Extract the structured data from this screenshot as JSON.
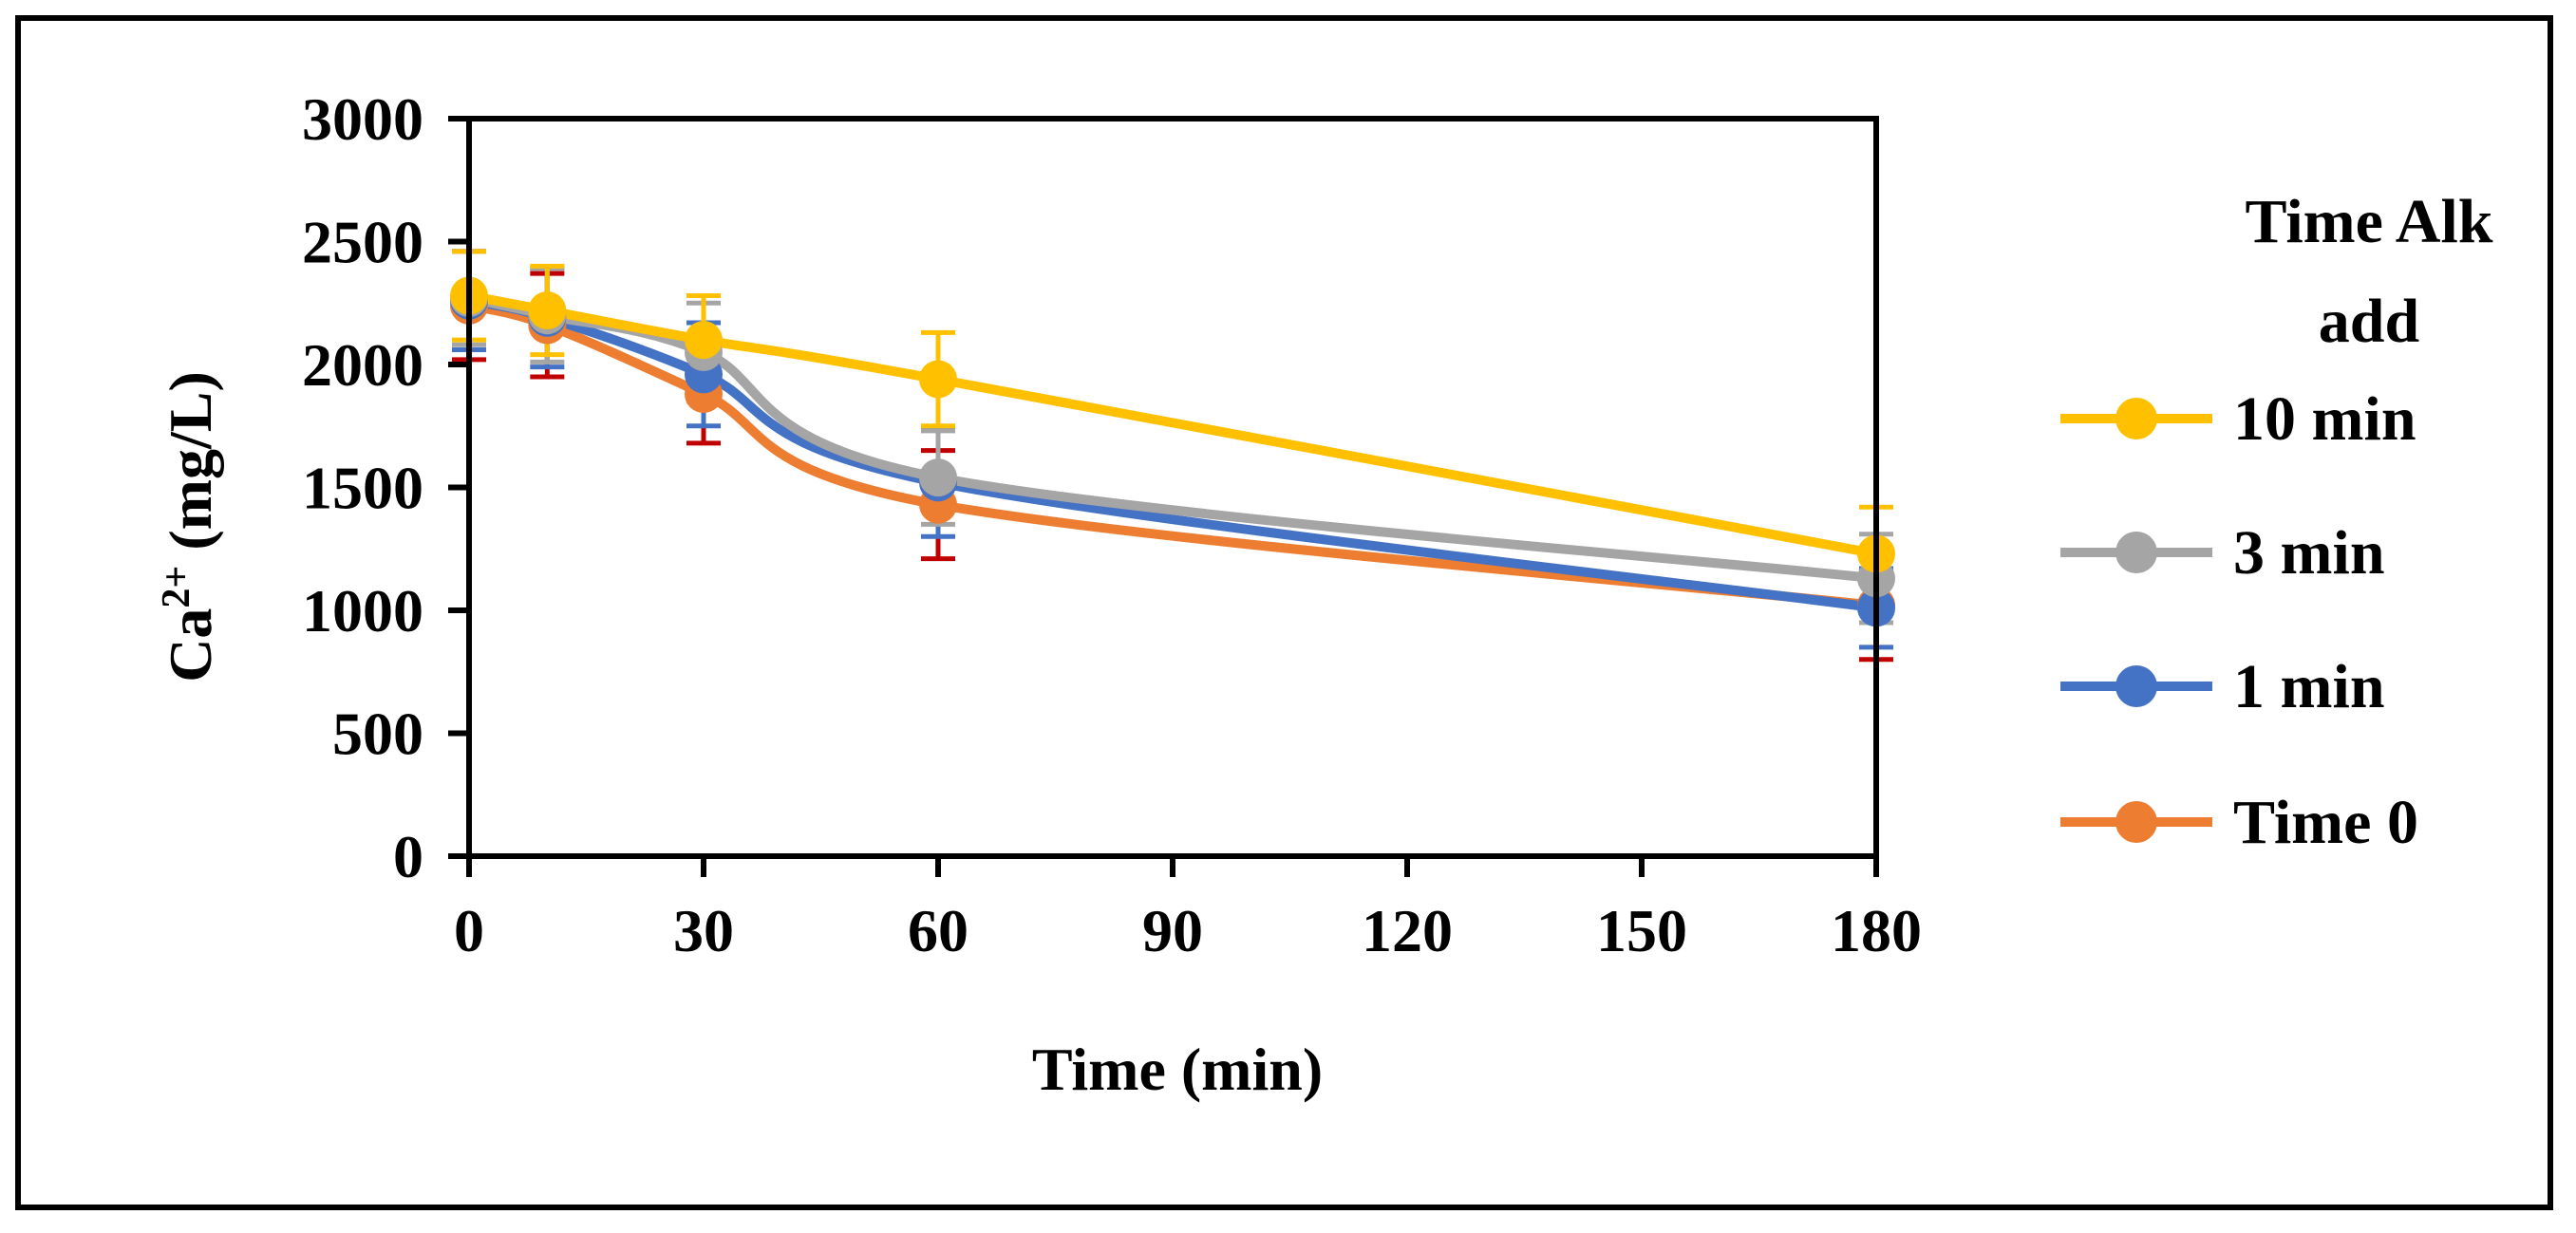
{
  "chart_data": {
    "type": "line",
    "title": "",
    "xlabel": "Time (min)",
    "ylabel": "Ca",
    "ylabel_superscript": "2+",
    "ylabel_unit": " (mg/L)",
    "xlim": [
      0,
      180
    ],
    "ylim": [
      0,
      3000
    ],
    "xticks": [
      0,
      30,
      60,
      90,
      120,
      150,
      180
    ],
    "yticks": [
      0,
      500,
      1000,
      1500,
      2000,
      2500,
      3000
    ],
    "grid": false,
    "smooth": true,
    "legend_position": "right",
    "legend_title": [
      "Time Alk",
      "add"
    ],
    "series": [
      {
        "name": "Time 0",
        "color": "#ED7D31",
        "error_bar_color": "#C00000",
        "x": [
          0,
          10,
          30,
          60,
          180
        ],
        "y": [
          2240,
          2160,
          1880,
          1430,
          1020
        ],
        "error": [
          220,
          210,
          200,
          220,
          220
        ]
      },
      {
        "name": "1 min",
        "color": "#4472C4",
        "error_bar_color": "#4472C4",
        "x": [
          0,
          10,
          30,
          60,
          180
        ],
        "y": [
          2260,
          2190,
          1960,
          1520,
          1010
        ],
        "error": [
          200,
          200,
          210,
          220,
          160
        ]
      },
      {
        "name": "3 min",
        "color": "#A5A5A5",
        "error_bar_color": "#A5A5A5",
        "x": [
          0,
          10,
          30,
          60,
          180
        ],
        "y": [
          2270,
          2200,
          2050,
          1540,
          1130
        ],
        "error": [
          190,
          190,
          200,
          190,
          180
        ]
      },
      {
        "name": "10 min",
        "color": "#FFC000",
        "error_bar_color": "#FFC000",
        "x": [
          0,
          10,
          30,
          60,
          180
        ],
        "y": [
          2280,
          2220,
          2100,
          1940,
          1230
        ],
        "error": [
          180,
          180,
          180,
          190,
          190
        ]
      }
    ],
    "legend_order": [
      "10 min",
      "3 min",
      "1 min",
      "Time 0"
    ]
  }
}
